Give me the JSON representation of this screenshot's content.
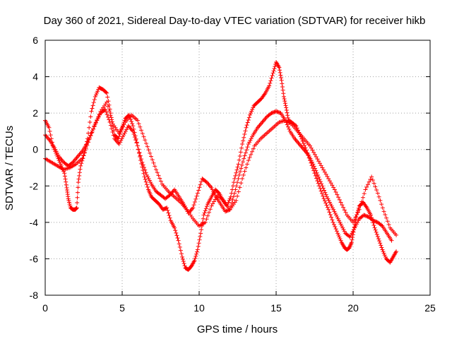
{
  "chart_data": {
    "type": "scatter",
    "title": "Day 360 of 2021, Sidereal Day-to-day VTEC variation (SDTVAR) for receiver hikb",
    "xlabel": "GPS time / hours",
    "ylabel": "SDTVAR / TECUs",
    "xlim": [
      0,
      25
    ],
    "ylim": [
      -8,
      6
    ],
    "x_ticks": [
      0,
      5,
      10,
      15,
      20,
      25
    ],
    "y_ticks": [
      -8,
      -6,
      -4,
      -2,
      0,
      2,
      4,
      6
    ],
    "grid": true,
    "marker": "+",
    "series": [
      {
        "name": "SDTVAR",
        "color": "#ff0000",
        "tracks": [
          {
            "x": [
              0.0,
              0.25,
              0.5,
              0.75,
              1.0,
              1.25,
              1.4,
              1.5,
              1.65,
              1.8,
              1.95,
              2.05,
              2.15,
              2.3,
              2.55,
              2.75,
              3.0,
              3.25,
              3.5,
              3.75,
              4.0,
              4.25,
              4.5,
              4.75,
              5.0,
              5.2,
              5.45,
              5.7,
              5.95,
              6.2,
              6.45,
              6.7,
              6.9,
              7.15,
              7.4,
              7.65,
              7.9,
              8.15,
              8.4,
              8.65,
              8.9,
              9.1,
              9.3,
              9.5,
              9.7,
              9.9,
              10.1,
              10.3,
              10.55,
              10.8,
              11.05,
              11.3,
              11.55,
              11.8,
              12.05,
              12.3,
              12.55,
              12.8,
              13.05,
              13.3,
              13.55,
              13.8,
              14.05,
              14.3,
              14.55,
              14.8,
              15.0,
              15.2,
              15.35,
              15.5,
              15.65,
              15.8,
              16.0,
              16.3,
              16.6,
              16.9,
              17.2,
              17.5,
              17.8,
              18.1,
              18.4,
              18.7,
              19.0,
              19.25,
              19.45,
              19.6,
              19.75,
              19.9,
              20.05,
              20.2,
              20.4,
              20.65,
              20.9,
              21.15,
              21.4,
              21.65,
              21.9,
              22.15,
              22.4,
              22.6,
              22.8
            ],
            "y": [
              1.6,
              1.2,
              0.2,
              -0.3,
              -0.8,
              -1.3,
              -2.1,
              -2.7,
              -3.2,
              -3.3,
              -3.3,
              -3.2,
              -1.8,
              -0.9,
              -0.2,
              0.6,
              2.1,
              2.9,
              3.4,
              3.3,
              3.1,
              2.0,
              0.8,
              0.6,
              1.2,
              1.7,
              1.9,
              1.3,
              0.4,
              -0.6,
              -1.5,
              -2.2,
              -2.6,
              -2.8,
              -3.0,
              -3.3,
              -3.2,
              -3.9,
              -4.3,
              -5.0,
              -5.9,
              -6.5,
              -6.6,
              -6.4,
              -6.1,
              -5.5,
              -4.6,
              -3.6,
              -3.0,
              -2.6,
              -2.2,
              -2.4,
              -2.8,
              -3.1,
              -2.6,
              -1.6,
              -0.8,
              0.3,
              1.2,
              1.9,
              2.4,
              2.6,
              2.8,
              3.1,
              3.5,
              4.2,
              4.8,
              4.5,
              3.8,
              2.9,
              2.3,
              1.6,
              1.5,
              1.3,
              0.7,
              0.1,
              -0.6,
              -1.3,
              -2.0,
              -2.7,
              -3.3,
              -4.0,
              -4.6,
              -5.1,
              -5.4,
              -5.5,
              -5.4,
              -5.1,
              -4.4,
              -3.7,
              -3.1,
              -2.9,
              -3.2,
              -3.6,
              -4.3,
              -4.9,
              -5.5,
              -6.0,
              -6.2,
              -5.9,
              -5.6
            ]
          },
          {
            "x": [
              0.0,
              0.3,
              0.6,
              0.9,
              1.2,
              1.5,
              1.8,
              2.1,
              2.4,
              2.7,
              3.0,
              3.3,
              3.6,
              3.9,
              4.2,
              4.5,
              4.8,
              5.1,
              5.4,
              5.7,
              6.0,
              6.3,
              6.6,
              6.9,
              7.2,
              7.5,
              7.8,
              8.1,
              8.4,
              8.7,
              9.0,
              9.3,
              9.6,
              9.9,
              10.2,
              10.5,
              10.8,
              11.1,
              11.4,
              11.7,
              12.0,
              12.3,
              12.6,
              12.9,
              13.2,
              13.5,
              13.8,
              14.1,
              14.4,
              14.7,
              15.0,
              15.3,
              15.6,
              15.9,
              16.2,
              16.5,
              16.8,
              17.1,
              17.4,
              17.7,
              18.0,
              18.3,
              18.6,
              18.9,
              19.2,
              19.5,
              19.8,
              20.1,
              20.4,
              20.7,
              21.0,
              21.3,
              21.6,
              21.9,
              22.2,
              22.5
            ],
            "y": [
              0.8,
              0.5,
              0.1,
              -0.4,
              -0.7,
              -0.9,
              -0.7,
              -0.4,
              -0.1,
              0.3,
              0.9,
              1.5,
              2.0,
              2.2,
              1.5,
              0.6,
              0.3,
              0.8,
              1.3,
              1.0,
              0.2,
              -0.7,
              -1.4,
              -1.9,
              -2.3,
              -2.5,
              -2.7,
              -2.5,
              -2.2,
              -2.6,
              -3.0,
              -3.5,
              -3.2,
              -2.4,
              -1.6,
              -1.8,
              -2.1,
              -2.6,
              -3.0,
              -3.4,
              -3.3,
              -2.4,
              -1.4,
              -0.5,
              0.3,
              0.8,
              1.2,
              1.5,
              1.8,
              2.0,
              2.1,
              2.0,
              1.6,
              1.0,
              0.6,
              0.3,
              0.0,
              -0.3,
              -0.8,
              -1.4,
              -2.0,
              -2.6,
              -3.1,
              -3.6,
              -4.1,
              -4.6,
              -4.8,
              -4.3,
              -3.8,
              -3.6,
              -3.7,
              -3.9,
              -4.0,
              -4.2,
              -4.6,
              -5.0
            ]
          },
          {
            "x": [
              0.0,
              0.4,
              0.8,
              1.2,
              1.6,
              2.0,
              2.4,
              2.8,
              3.2,
              3.6,
              4.0,
              4.4,
              4.8,
              5.2,
              5.6,
              6.0,
              6.4,
              6.8,
              7.2,
              7.6,
              8.0,
              8.4,
              8.8,
              9.2,
              9.6,
              10.0,
              10.4,
              10.8,
              11.2,
              11.6,
              12.0,
              12.4,
              12.8,
              13.2,
              13.6,
              14.0,
              14.4,
              14.8,
              15.2,
              15.6,
              16.0,
              16.4,
              16.8,
              17.2,
              17.6,
              18.0,
              18.4,
              18.8,
              19.2,
              19.6,
              20.0,
              20.4,
              20.8,
              21.2,
              21.6,
              22.0,
              22.4,
              22.8
            ],
            "y": [
              -0.5,
              -0.7,
              -0.9,
              -1.1,
              -1.0,
              -0.8,
              -0.5,
              0.4,
              1.3,
              2.1,
              2.6,
              1.4,
              0.9,
              1.5,
              1.9,
              1.6,
              0.7,
              -0.2,
              -1.1,
              -1.9,
              -2.3,
              -2.6,
              -2.9,
              -3.3,
              -3.8,
              -4.2,
              -4.0,
              -3.1,
              -2.5,
              -2.8,
              -3.3,
              -2.8,
              -1.6,
              -0.6,
              0.2,
              0.6,
              0.9,
              1.2,
              1.5,
              1.6,
              1.4,
              1.0,
              0.6,
              0.2,
              -0.4,
              -1.0,
              -1.6,
              -2.2,
              -2.9,
              -3.6,
              -4.0,
              -3.3,
              -2.2,
              -1.5,
              -2.4,
              -3.4,
              -4.3,
              -4.7
            ]
          }
        ]
      }
    ]
  }
}
